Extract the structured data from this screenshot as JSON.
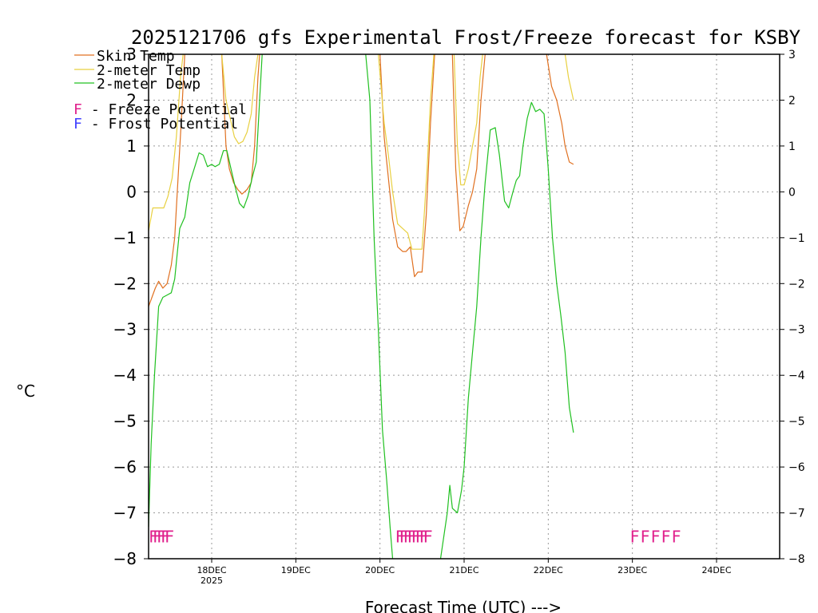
{
  "chart_data": {
    "type": "line",
    "title": "2025121706 gfs Experimental Frost/Freeze forecast for KSBY",
    "xlabel": "Forecast Time (UTC) --->",
    "ylabel": "°C",
    "ylim": [
      -8,
      3
    ],
    "xlim": [
      17.25,
      24.75
    ],
    "y_ticks": [
      "3",
      "2",
      "1",
      "0",
      "−1",
      "−2",
      "−3",
      "−4",
      "−5",
      "−6",
      "−7",
      "−8"
    ],
    "y_tick_values": [
      3,
      2,
      1,
      0,
      -1,
      -2,
      -3,
      -4,
      -5,
      -6,
      -7,
      -8
    ],
    "x_ticks": [
      {
        "label": "18DEC",
        "sub": "2025",
        "value": 18.0
      },
      {
        "label": "19DEC",
        "sub": "",
        "value": 19.0
      },
      {
        "label": "20DEC",
        "sub": "",
        "value": 20.0
      },
      {
        "label": "21DEC",
        "sub": "",
        "value": 21.0
      },
      {
        "label": "22DEC",
        "sub": "",
        "value": 22.0
      },
      {
        "label": "23DEC",
        "sub": "",
        "value": 23.0
      },
      {
        "label": "24DEC",
        "sub": "",
        "value": 24.0
      }
    ],
    "grid": true,
    "legend": {
      "position": "top-left",
      "items": [
        {
          "label": "Skin Temp",
          "color": "#e07020"
        },
        {
          "label": "2-meter Temp",
          "color": "#e8d040"
        },
        {
          "label": "2-meter Dewp",
          "color": "#20c020"
        }
      ],
      "markers": [
        {
          "symbol": "F",
          "label": " - Freeze Potential",
          "color": "#e0208c"
        },
        {
          "symbol": "F",
          "label": " - Frost Potential",
          "color": "#4040ff"
        }
      ]
    },
    "series": [
      {
        "name": "Skin Temp",
        "color": "#e07020",
        "segments": [
          [
            [
              17.25,
              -2.5
            ],
            [
              17.33,
              -2.1
            ],
            [
              17.37,
              -1.95
            ],
            [
              17.42,
              -2.1
            ],
            [
              17.47,
              -2.0
            ],
            [
              17.52,
              -1.6
            ],
            [
              17.56,
              -1.0
            ],
            [
              17.6,
              0.3
            ],
            [
              17.64,
              1.6
            ],
            [
              17.68,
              3.0
            ]
          ],
          [
            [
              18.12,
              3.0
            ],
            [
              18.17,
              1.0
            ],
            [
              18.21,
              0.5
            ],
            [
              18.26,
              0.2
            ],
            [
              18.31,
              0.05
            ],
            [
              18.36,
              -0.05
            ],
            [
              18.42,
              0.05
            ],
            [
              18.47,
              0.2
            ],
            [
              18.51,
              1.0
            ],
            [
              18.55,
              2.5
            ],
            [
              18.57,
              3.0
            ]
          ],
          [
            [
              20.0,
              3.0
            ],
            [
              20.05,
              1.2
            ],
            [
              20.1,
              0.3
            ],
            [
              20.15,
              -0.6
            ],
            [
              20.21,
              -1.2
            ],
            [
              20.27,
              -1.3
            ],
            [
              20.31,
              -1.3
            ],
            [
              20.36,
              -1.2
            ],
            [
              20.41,
              -1.85
            ],
            [
              20.45,
              -1.75
            ],
            [
              20.5,
              -1.75
            ],
            [
              20.55,
              -0.5
            ],
            [
              20.6,
              1.5
            ],
            [
              20.65,
              3.0
            ]
          ],
          [
            [
              20.86,
              3.0
            ],
            [
              20.9,
              0.5
            ],
            [
              20.95,
              -0.85
            ],
            [
              20.99,
              -0.75
            ],
            [
              21.05,
              -0.3
            ],
            [
              21.1,
              0.0
            ],
            [
              21.15,
              0.5
            ],
            [
              21.2,
              2.0
            ],
            [
              21.25,
              3.0
            ]
          ],
          [
            [
              21.98,
              3.0
            ],
            [
              22.04,
              2.3
            ],
            [
              22.1,
              2.0
            ],
            [
              22.16,
              1.5
            ],
            [
              22.2,
              1.0
            ],
            [
              22.25,
              0.65
            ],
            [
              22.3,
              0.6
            ]
          ]
        ]
      },
      {
        "name": "2-meter Temp",
        "color": "#e8d040",
        "segments": [
          [
            [
              17.25,
              -0.85
            ],
            [
              17.3,
              -0.35
            ],
            [
              17.37,
              -0.35
            ],
            [
              17.43,
              -0.35
            ],
            [
              17.48,
              -0.1
            ],
            [
              17.53,
              0.3
            ],
            [
              17.58,
              1.2
            ],
            [
              17.63,
              2.5
            ],
            [
              17.66,
              3.0
            ]
          ],
          [
            [
              18.12,
              3.0
            ],
            [
              18.17,
              2.0
            ],
            [
              18.22,
              1.6
            ],
            [
              18.27,
              1.2
            ],
            [
              18.32,
              1.05
            ],
            [
              18.37,
              1.1
            ],
            [
              18.42,
              1.3
            ],
            [
              18.47,
              1.7
            ],
            [
              18.51,
              2.5
            ],
            [
              18.55,
              3.0
            ]
          ],
          [
            [
              19.98,
              3.0
            ],
            [
              20.05,
              1.5
            ],
            [
              20.1,
              0.8
            ],
            [
              20.15,
              0.0
            ],
            [
              20.21,
              -0.7
            ],
            [
              20.27,
              -0.8
            ],
            [
              20.33,
              -0.9
            ],
            [
              20.38,
              -1.25
            ],
            [
              20.45,
              -1.25
            ],
            [
              20.5,
              -1.25
            ],
            [
              20.56,
              0.5
            ],
            [
              20.6,
              2.0
            ],
            [
              20.64,
              3.0
            ]
          ],
          [
            [
              20.88,
              3.0
            ],
            [
              20.92,
              1.0
            ],
            [
              20.96,
              0.15
            ],
            [
              21.0,
              0.15
            ],
            [
              21.05,
              0.5
            ],
            [
              21.1,
              1.0
            ],
            [
              21.15,
              1.5
            ],
            [
              21.19,
              2.5
            ],
            [
              21.22,
              3.0
            ]
          ],
          [
            [
              22.2,
              3.0
            ],
            [
              22.24,
              2.5
            ],
            [
              22.3,
              2.0
            ]
          ]
        ]
      },
      {
        "name": "2-meter Dewp",
        "color": "#20c020",
        "segments": [
          [
            [
              17.25,
              -7.3
            ],
            [
              17.28,
              -5.5
            ],
            [
              17.32,
              -4.0
            ],
            [
              17.37,
              -2.5
            ],
            [
              17.42,
              -2.3
            ],
            [
              17.47,
              -2.25
            ],
            [
              17.52,
              -2.2
            ],
            [
              17.56,
              -1.9
            ],
            [
              17.62,
              -0.8
            ],
            [
              17.68,
              -0.55
            ],
            [
              17.74,
              0.2
            ],
            [
              17.8,
              0.55
            ],
            [
              17.85,
              0.85
            ],
            [
              17.9,
              0.8
            ],
            [
              17.95,
              0.55
            ],
            [
              18.0,
              0.6
            ],
            [
              18.04,
              0.55
            ],
            [
              18.09,
              0.6
            ],
            [
              18.14,
              0.9
            ],
            [
              18.18,
              0.9
            ],
            [
              18.23,
              0.5
            ],
            [
              18.28,
              0.1
            ],
            [
              18.33,
              -0.25
            ],
            [
              18.38,
              -0.35
            ],
            [
              18.43,
              -0.1
            ],
            [
              18.48,
              0.3
            ],
            [
              18.53,
              0.65
            ],
            [
              18.57,
              2.0
            ],
            [
              18.6,
              3.0
            ]
          ],
          [
            [
              19.83,
              3.0
            ],
            [
              19.88,
              2.0
            ],
            [
              19.93,
              -1.0
            ],
            [
              19.98,
              -3.0
            ],
            [
              20.03,
              -5.2
            ],
            [
              20.08,
              -6.3
            ],
            [
              20.12,
              -7.3
            ],
            [
              20.15,
              -8.0
            ]
          ],
          [
            [
              20.72,
              -8.0
            ],
            [
              20.76,
              -7.5
            ],
            [
              20.8,
              -7.0
            ],
            [
              20.83,
              -6.4
            ],
            [
              20.86,
              -6.9
            ],
            [
              20.92,
              -7.0
            ],
            [
              20.97,
              -6.5
            ],
            [
              21.0,
              -6.0
            ],
            [
              21.05,
              -4.5
            ],
            [
              21.1,
              -3.5
            ],
            [
              21.15,
              -2.5
            ],
            [
              21.2,
              -1.0
            ],
            [
              21.25,
              0.2
            ],
            [
              21.31,
              1.35
            ],
            [
              21.37,
              1.4
            ],
            [
              21.42,
              0.8
            ],
            [
              21.48,
              -0.2
            ],
            [
              21.53,
              -0.35
            ],
            [
              21.58,
              0.0
            ],
            [
              21.62,
              0.25
            ],
            [
              21.66,
              0.35
            ],
            [
              21.7,
              1.0
            ],
            [
              21.75,
              1.6
            ],
            [
              21.8,
              1.95
            ],
            [
              21.85,
              1.75
            ],
            [
              21.9,
              1.8
            ],
            [
              21.95,
              1.7
            ],
            [
              22.0,
              0.5
            ],
            [
              22.05,
              -1.0
            ],
            [
              22.1,
              -2.0
            ],
            [
              22.15,
              -2.7
            ],
            [
              22.2,
              -3.5
            ],
            [
              22.25,
              -4.7
            ],
            [
              22.3,
              -5.25
            ]
          ]
        ]
      }
    ],
    "annotations": [
      {
        "text": "FFFFF",
        "x": 17.25,
        "y": -7.5,
        "color": "#e0208c",
        "packing": "dense"
      },
      {
        "text": "FFFFFFFF",
        "x": 20.18,
        "y": -7.5,
        "color": "#e0208c",
        "packing": "dense"
      },
      {
        "text": "FFFFF",
        "x": 22.97,
        "y": -7.5,
        "color": "#e0208c",
        "packing": "spaced"
      }
    ]
  }
}
